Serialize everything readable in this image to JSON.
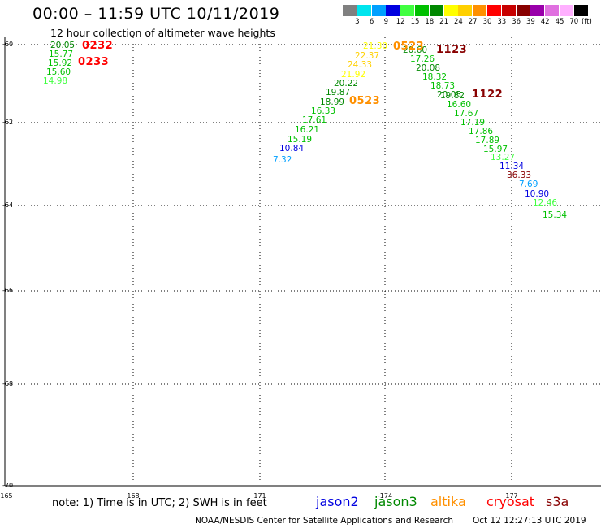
{
  "header": {
    "title": "00:00 – 11:59 UTC 10/11/2019",
    "subtitle": "12 hour collection of altimeter wave heights"
  },
  "colorbar": {
    "unit": "(ft)",
    "bins": [
      {
        "label": "3",
        "color": "#808080"
      },
      {
        "label": "6",
        "color": "#00e5ee"
      },
      {
        "label": "9",
        "color": "#00a0ff"
      },
      {
        "label": "12",
        "color": "#0000e0"
      },
      {
        "label": "15",
        "color": "#40ff40"
      },
      {
        "label": "18",
        "color": "#00c000"
      },
      {
        "label": "21",
        "color": "#008800"
      },
      {
        "label": "24",
        "color": "#ffff00"
      },
      {
        "label": "27",
        "color": "#ffd000"
      },
      {
        "label": "30",
        "color": "#ff9000"
      },
      {
        "label": "33",
        "color": "#ff0000"
      },
      {
        "label": "36",
        "color": "#c80000"
      },
      {
        "label": "39",
        "color": "#880000"
      },
      {
        "label": "42",
        "color": "#9900aa"
      },
      {
        "label": "45",
        "color": "#e070e0"
      },
      {
        "label": "70",
        "color": "#ffb0ff"
      },
      {
        "label": "",
        "color": "#000000"
      }
    ]
  },
  "map": {
    "lat_labels": [
      "-60",
      "-62",
      "-64",
      "-66",
      "-68",
      "-70"
    ],
    "lon_labels": [
      "165",
      "168",
      "171",
      "-174",
      "177"
    ]
  },
  "observations": [
    {
      "text": "20.05",
      "color": "#008800"
    },
    {
      "text": "15.77",
      "color": "#00c000"
    },
    {
      "text": "15.92",
      "color": "#00c000"
    },
    {
      "text": "15.60",
      "color": "#00c000"
    },
    {
      "text": "14.98",
      "color": "#40ff40"
    },
    {
      "text": "21.30",
      "color": "#ffff00"
    },
    {
      "text": "22.37",
      "color": "#ffd000"
    },
    {
      "text": "24.33",
      "color": "#ffd000"
    },
    {
      "text": "21.92",
      "color": "#ffff00"
    },
    {
      "text": "20.22",
      "color": "#008800"
    },
    {
      "text": "19.87",
      "color": "#008800"
    },
    {
      "text": "18.99",
      "color": "#008800"
    },
    {
      "text": "16.33",
      "color": "#00c000"
    },
    {
      "text": "17.61",
      "color": "#00c000"
    },
    {
      "text": "16.21",
      "color": "#00c000"
    },
    {
      "text": "15.19",
      "color": "#00c000"
    },
    {
      "text": "10.84",
      "color": "#0000e0"
    },
    {
      "text": "7.32",
      "color": "#00a0ff"
    },
    {
      "text": "20.60",
      "color": "#008800"
    },
    {
      "text": "17.26",
      "color": "#00c000"
    },
    {
      "text": "20.08",
      "color": "#008800"
    },
    {
      "text": "18.32",
      "color": "#00c000"
    },
    {
      "text": "18.73",
      "color": "#00c000"
    },
    {
      "text": "20.05",
      "color": "#008800"
    },
    {
      "text": "19.82",
      "color": "#008800"
    },
    {
      "text": "16.60",
      "color": "#00c000"
    },
    {
      "text": "17.67",
      "color": "#00c000"
    },
    {
      "text": "17.19",
      "color": "#00c000"
    },
    {
      "text": "17.86",
      "color": "#00c000"
    },
    {
      "text": "17.89",
      "color": "#00c000"
    },
    {
      "text": "15.97",
      "color": "#00c000"
    },
    {
      "text": "13.27",
      "color": "#40ff40"
    },
    {
      "text": "11.34",
      "color": "#0000e0"
    },
    {
      "text": "36.33",
      "color": "#880000"
    },
    {
      "text": "7.69",
      "color": "#00a0ff"
    },
    {
      "text": "10.90",
      "color": "#0000e0"
    },
    {
      "text": "12.46",
      "color": "#40ff40"
    },
    {
      "text": "15.34",
      "color": "#00c000"
    }
  ],
  "time_labels": [
    {
      "text": "0232",
      "color": "#ff0000"
    },
    {
      "text": "0233",
      "color": "#ff0000"
    },
    {
      "text": "0523",
      "color": "#ff9000"
    },
    {
      "text": "0523",
      "color": "#ff9000"
    },
    {
      "text": "1123",
      "color": "#880000"
    },
    {
      "text": "1122",
      "color": "#880000"
    }
  ],
  "footer": {
    "note": "note: 1) Time is in UTC; 2) SWH is in feet",
    "satellites": [
      {
        "name": "jason2",
        "color": "#0000e0"
      },
      {
        "name": "jason3",
        "color": "#008800"
      },
      {
        "name": "altika",
        "color": "#ff9000"
      },
      {
        "name": "cryosat",
        "color": "#ff0000"
      },
      {
        "name": "s3a",
        "color": "#880000"
      }
    ],
    "credit": "NOAA/NESDIS Center for Satellite Applications and Research",
    "generated": "Oct 12 12:27:13 UTC 2019"
  }
}
